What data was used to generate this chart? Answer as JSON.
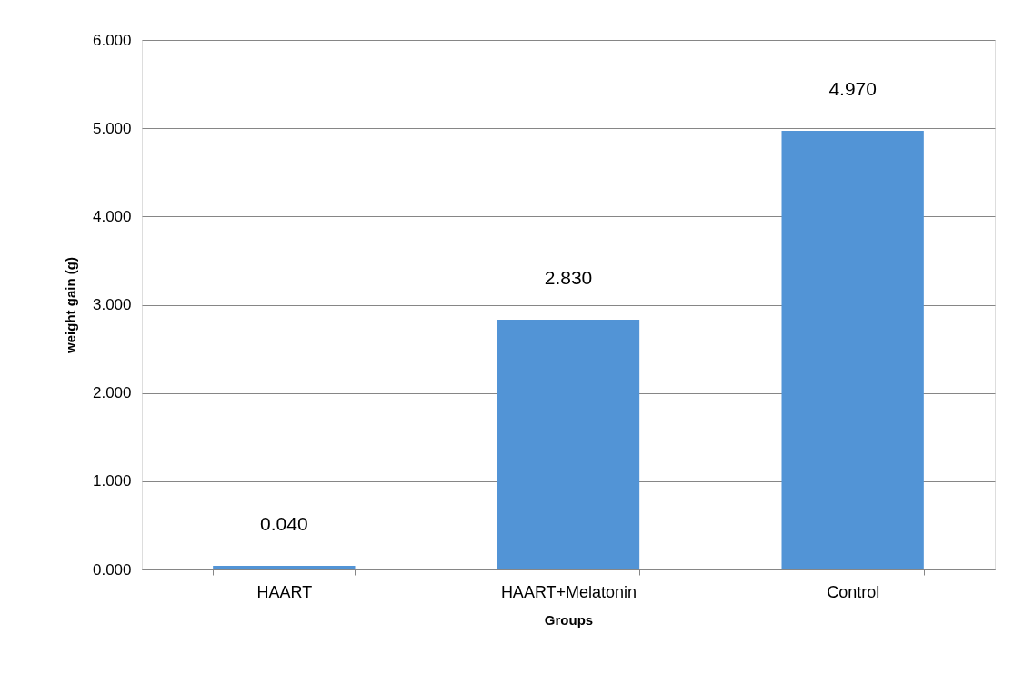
{
  "chart_data": {
    "type": "bar",
    "xlabel": "Groups",
    "ylabel": "weight gain (g)",
    "categories": [
      "HAART",
      "HAART+Melatonin",
      "Control"
    ],
    "values": [
      0.04,
      2.83,
      4.97
    ],
    "value_labels": [
      "0.040",
      "2.830",
      "4.970"
    ],
    "color": "#5294d6",
    "ylim": [
      0,
      6
    ],
    "yticks": [
      {
        "value": 0,
        "label": "0.000"
      },
      {
        "value": 1,
        "label": "1.000"
      },
      {
        "value": 2,
        "label": "2.000"
      },
      {
        "value": 3,
        "label": "3.000"
      },
      {
        "value": 4,
        "label": "4.000"
      },
      {
        "value": 5,
        "label": "5.000"
      },
      {
        "value": 6,
        "label": "6.000"
      }
    ],
    "grid": "y"
  }
}
